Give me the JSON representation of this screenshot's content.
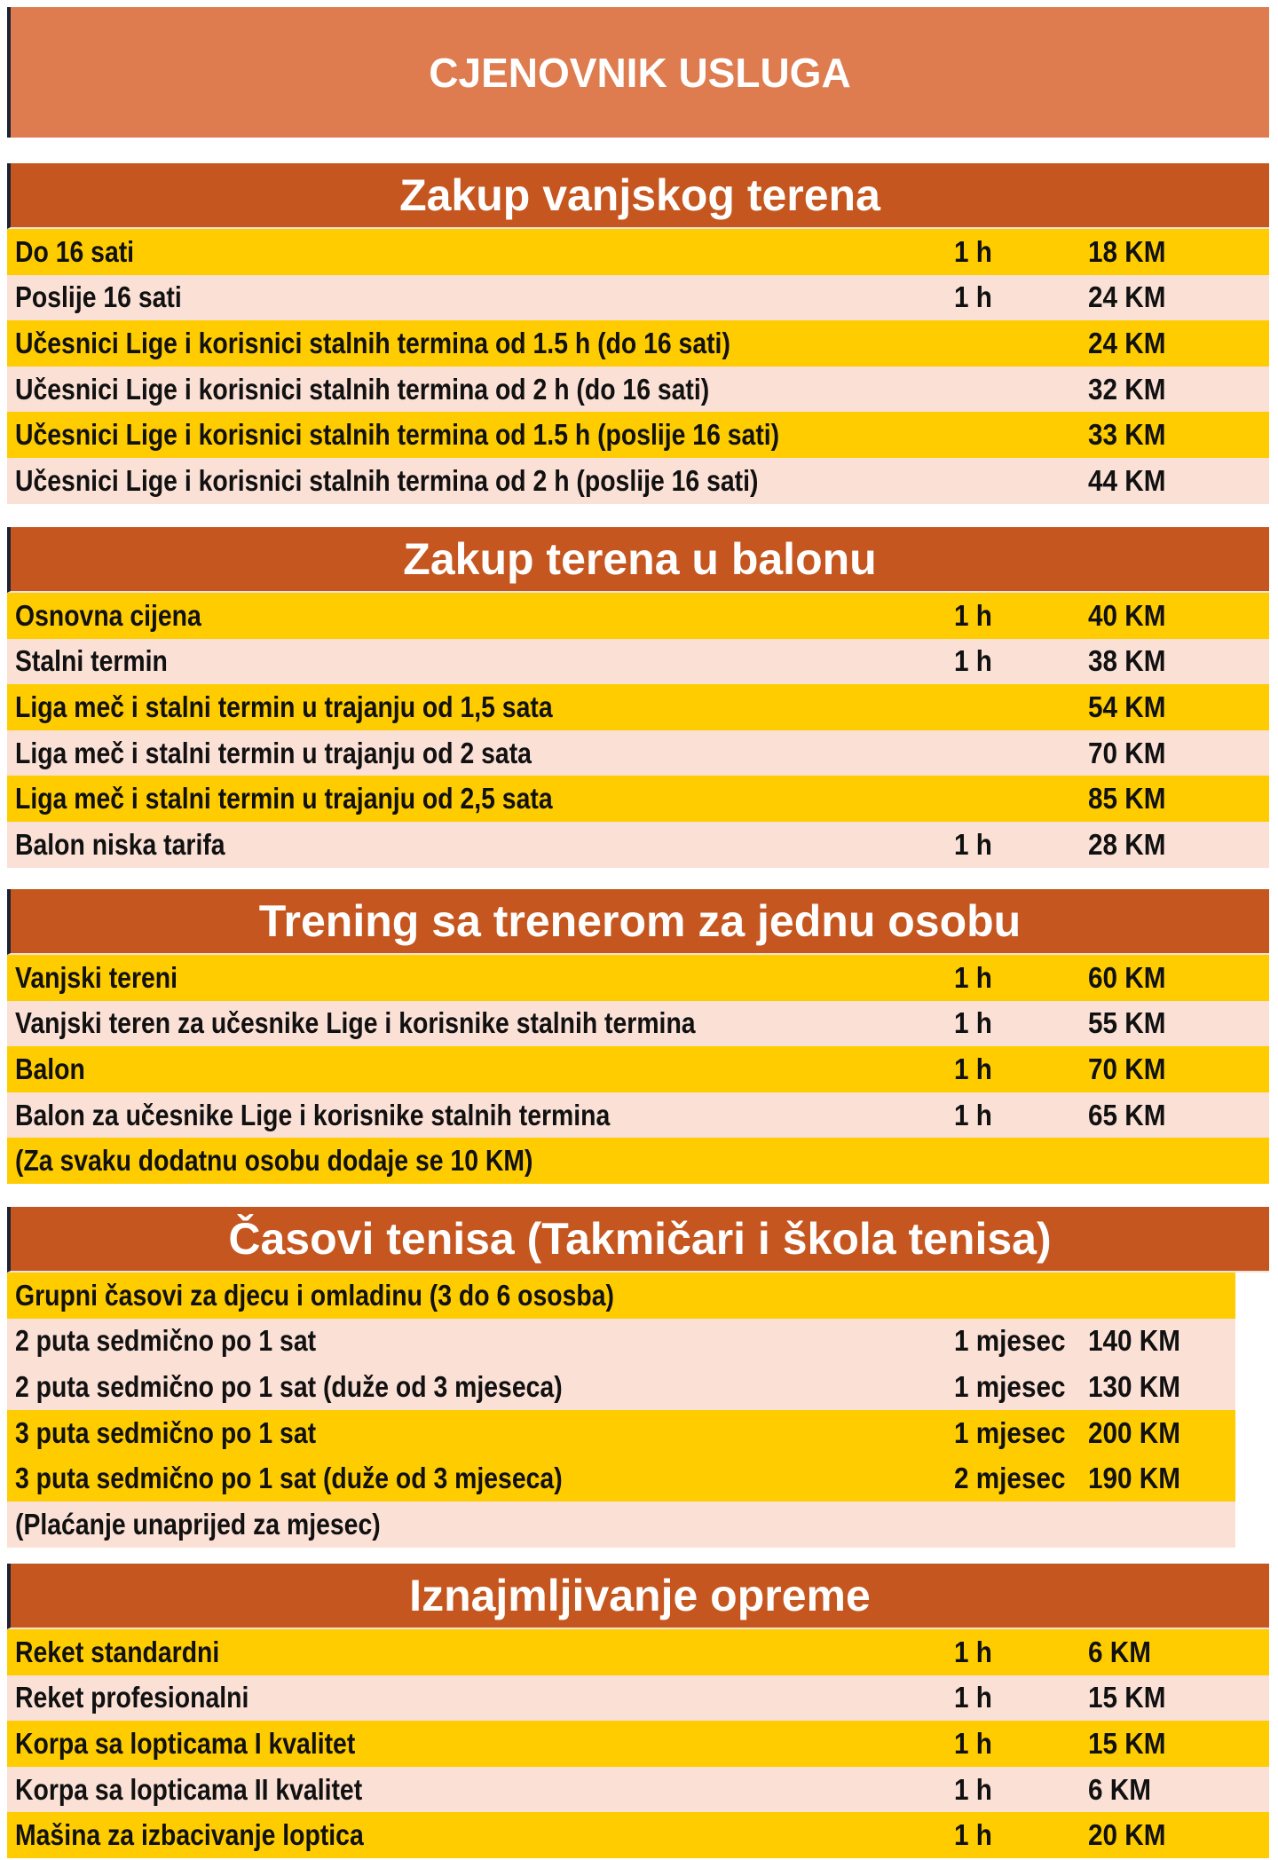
{
  "title": "CJENOVNIK USLUGA",
  "colors": {
    "title_bg": "#DE7C50",
    "section_bg": "#C5561F",
    "yellow": "#FFCC00",
    "pink": "#FBE0D6"
  },
  "sections": [
    {
      "heading": "Zakup vanjskog terena",
      "rows": [
        {
          "label": "Do 16 sati",
          "duration": "1 h",
          "price": "18 KM",
          "color": "yellow"
        },
        {
          "label": "Poslije 16 sati",
          "duration": "1 h",
          "price": "24 KM",
          "color": "pink"
        },
        {
          "label": "Učesnici Lige i korisnici stalnih termina od 1.5 h (do 16 sati)",
          "duration": "",
          "price": "24 KM",
          "color": "yellow"
        },
        {
          "label": "Učesnici Lige i korisnici stalnih termina od 2 h (do 16 sati)",
          "duration": "",
          "price": "32 KM",
          "color": "pink"
        },
        {
          "label": "Učesnici Lige i korisnici stalnih termina od 1.5 h (poslije 16 sati)",
          "duration": "",
          "price": "33 KM",
          "color": "yellow"
        },
        {
          "label": "Učesnici Lige i korisnici stalnih termina od 2 h (poslije 16 sati)",
          "duration": "",
          "price": "44 KM",
          "color": "pink"
        }
      ]
    },
    {
      "heading": "Zakup terena u balonu",
      "rows": [
        {
          "label": "Osnovna cijena",
          "duration": "1 h",
          "price": "40 KM",
          "color": "yellow"
        },
        {
          "label": "Stalni termin",
          "duration": "1 h",
          "price": "38 KM",
          "color": "pink"
        },
        {
          "label": "Liga meč i stalni termin u trajanju od 1,5 sata",
          "duration": "",
          "price": "54 KM",
          "color": "yellow"
        },
        {
          "label": "Liga meč i stalni termin u trajanju od 2 sata",
          "duration": "",
          "price": "70 KM",
          "color": "pink"
        },
        {
          "label": "Liga meč  i stalni termin u trajanju od 2,5 sata",
          "duration": "",
          "price": "85 KM",
          "color": "yellow"
        },
        {
          "label": "Balon niska tarifa",
          "duration": "1 h",
          "price": "28 KM",
          "color": "pink"
        }
      ]
    },
    {
      "heading": "Trening sa trenerom za jednu osobu",
      "rows": [
        {
          "label": "Vanjski tereni",
          "duration": "1 h",
          "price": "60 KM",
          "color": "yellow"
        },
        {
          "label": "Vanjski teren za učesnike Lige i korisnike stalnih termina",
          "duration": "1 h",
          "price": "55 KM",
          "color": "pink"
        },
        {
          "label": "Balon",
          "duration": "1 h",
          "price": "70 KM",
          "color": "yellow"
        },
        {
          "label": "Balon za učesnike Lige  i korisnike stalnih termina",
          "duration": "1 h",
          "price": "65 KM",
          "color": "pink"
        },
        {
          "label": "(Za svaku dodatnu osobu dodaje se 10 KM)",
          "duration": "",
          "price": "",
          "color": "yellow"
        }
      ]
    },
    {
      "heading": "Časovi tenisa (Takmičari i škola tenisa)",
      "narrow": true,
      "rows": [
        {
          "label": "Grupni časovi za djecu i omladinu (3 do 6 ososba)",
          "duration": "",
          "price": "",
          "color": "yellow"
        },
        {
          "label": "2 puta sedmično po 1 sat",
          "duration": "1 mjesec",
          "price": "140 KM",
          "color": "pink"
        },
        {
          "label": "2 puta sedmično po 1 sat (duže od 3 mjeseca)",
          "duration": "1 mjesec",
          "price": "130 KM",
          "color": "pink"
        },
        {
          "label": "3 puta sedmično po 1 sat",
          "duration": "1 mjesec",
          "price": "200 KM",
          "color": "yellow"
        },
        {
          "label": "3 puta sedmično po 1 sat  (duže od 3 mjeseca)",
          "duration": "2 mjesec",
          "price": "190 KM",
          "color": "yellow"
        },
        {
          "label": "(Plaćanje unaprijed za mjesec)",
          "duration": "",
          "price": "",
          "color": "pink"
        }
      ]
    },
    {
      "heading": "Iznajmljivanje opreme",
      "rows": [
        {
          "label": "Reket standardni",
          "duration": "1 h",
          "price": "6 KM",
          "color": "yellow"
        },
        {
          "label": "Reket profesionalni",
          "duration": "1 h",
          "price": "15 KM",
          "color": "pink"
        },
        {
          "label": "Korpa sa lopticama I kvalitet",
          "duration": "1 h",
          "price": "15 KM",
          "color": "yellow"
        },
        {
          "label": "Korpa sa lopticama II kvalitet",
          "duration": "1 h",
          "price": "6 KM",
          "color": "pink"
        },
        {
          "label": "Mašina za izbacivanje loptica",
          "duration": "1 h",
          "price": "20 KM",
          "color": "yellow"
        }
      ]
    }
  ]
}
